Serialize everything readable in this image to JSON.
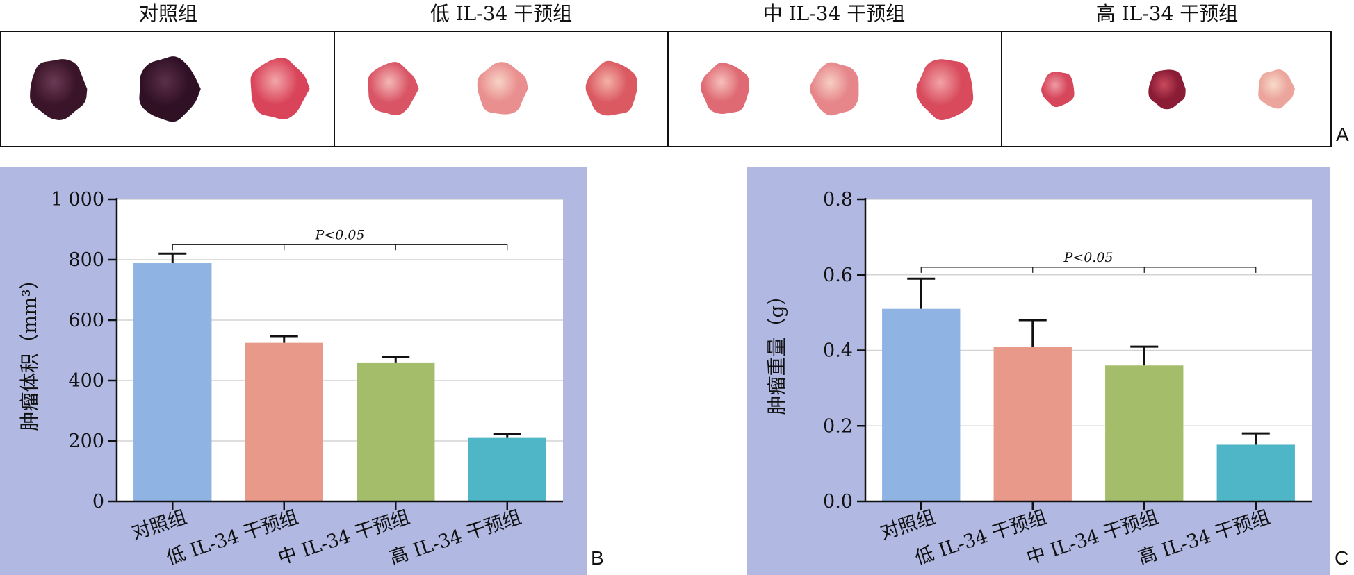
{
  "panel_labels": {
    "a": "A",
    "b": "B",
    "c": "C"
  },
  "panel_a": {
    "groups": [
      {
        "title": "对照组",
        "tumors": [
          {
            "color": "#3a1428",
            "highlight": "#6b3a55",
            "rel": 0.95
          },
          {
            "color": "#2f1024",
            "highlight": "#5c2f4a",
            "rel": 1.0
          },
          {
            "color": "#d9445a",
            "highlight": "#f2a6a8",
            "rel": 0.95
          }
        ]
      },
      {
        "title": "低 IL-34 干预组",
        "tumors": [
          {
            "color": "#d95566",
            "highlight": "#f4b8b6",
            "rel": 0.82
          },
          {
            "color": "#e98f8f",
            "highlight": "#f8d3c6",
            "rel": 0.82
          },
          {
            "color": "#db5a62",
            "highlight": "#f3b1a6",
            "rel": 0.85
          }
        ]
      },
      {
        "title": "中 IL-34 干预组",
        "tumors": [
          {
            "color": "#df6a74",
            "highlight": "#f6c0bb",
            "rel": 0.8
          },
          {
            "color": "#e6868a",
            "highlight": "#f7cfc4",
            "rel": 0.82
          },
          {
            "color": "#d84a5c",
            "highlight": "#f1a3a6",
            "rel": 0.95
          }
        ]
      },
      {
        "title": "高 IL-34 干预组",
        "tumors": [
          {
            "color": "#d6475c",
            "highlight": "#ee9aa2",
            "rel": 0.55
          },
          {
            "color": "#8a1c36",
            "highlight": "#c94a5c",
            "rel": 0.62
          },
          {
            "color": "#eba59c",
            "highlight": "#f8dccc",
            "rel": 0.6
          }
        ]
      }
    ]
  },
  "colors": {
    "panel_bg": "#b1b9e3",
    "plot_bg": "#ffffff",
    "grid": "#d3d3d3",
    "bars": [
      "#8fb3e2",
      "#e8998a",
      "#a3bd6a",
      "#4eb6c6"
    ],
    "axis": "#111111"
  },
  "chart_data": [
    {
      "type": "bar",
      "panel": "B",
      "categories": [
        "对照组",
        "低 IL-34 干预组",
        "中 IL-34 干预组",
        "高 IL-34 干预组"
      ],
      "values": [
        790,
        525,
        460,
        210
      ],
      "errors": [
        30,
        22,
        17,
        12
      ],
      "ylabel": "肿瘤体积（mm³）",
      "ylim": [
        0,
        1000
      ],
      "yticks": [
        0,
        200,
        400,
        600,
        800,
        1000
      ],
      "ytick_labels": [
        "0",
        "200",
        "400",
        "600",
        "800",
        "1 000"
      ],
      "grid": true,
      "significance": {
        "text": "P<0.05",
        "y": 850
      }
    },
    {
      "type": "bar",
      "panel": "C",
      "categories": [
        "对照组",
        "低 IL-34 干预组",
        "中 IL-34 干预组",
        "高 IL-34 干预组"
      ],
      "values": [
        0.51,
        0.41,
        0.36,
        0.15
      ],
      "errors": [
        0.08,
        0.07,
        0.05,
        0.03
      ],
      "ylabel": "肿瘤重量（g）",
      "ylim": [
        0,
        0.8
      ],
      "yticks": [
        0.0,
        0.2,
        0.4,
        0.6,
        0.8
      ],
      "ytick_labels": [
        "0.0",
        "0.2",
        "0.4",
        "0.6",
        "0.8"
      ],
      "grid": true,
      "significance": {
        "text": "P<0.05",
        "y": 0.62
      }
    }
  ]
}
